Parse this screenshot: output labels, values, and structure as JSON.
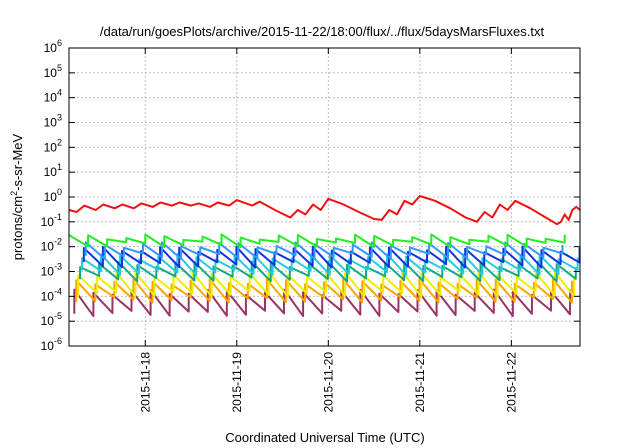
{
  "chart_data": {
    "type": "line",
    "title": "/data/run/goesPlots/archive/2015-11-22/18:00/flux/../flux/5daysMarsFluxes.txt",
    "xlabel": "Coordinated Universal Time (UTC)",
    "ylabel_base": "protons/cm",
    "ylabel_sup": "2",
    "ylabel_rest": "-s-sr-MeV",
    "y_scale": "log",
    "ylim": [
      1e-06,
      1000000
    ],
    "y_ticks": [
      {
        "base": "10",
        "exp": "-6",
        "value": 1e-06
      },
      {
        "base": "10",
        "exp": "-5",
        "value": 1e-05
      },
      {
        "base": "10",
        "exp": "-4",
        "value": 0.0001
      },
      {
        "base": "10",
        "exp": "-3",
        "value": 0.001
      },
      {
        "base": "10",
        "exp": "-2",
        "value": 0.01
      },
      {
        "base": "10",
        "exp": "-1",
        "value": 0.1
      },
      {
        "base": "10",
        "exp": "0",
        "value": 1
      },
      {
        "base": "10",
        "exp": "1",
        "value": 10
      },
      {
        "base": "10",
        "exp": "2",
        "value": 100
      },
      {
        "base": "10",
        "exp": "3",
        "value": 1000
      },
      {
        "base": "10",
        "exp": "4",
        "value": 10000
      },
      {
        "base": "10",
        "exp": "5",
        "value": 100000
      },
      {
        "base": "10",
        "exp": "6",
        "value": 1000000
      }
    ],
    "xlim": [
      "2015-11-17 04:00",
      "2015-11-22 18:00"
    ],
    "x_ticks": [
      {
        "label": "2015-11-18",
        "value": "2015-11-18 00:00"
      },
      {
        "label": "2015-11-19",
        "value": "2015-11-19 00:00"
      },
      {
        "label": "2015-11-20",
        "value": "2015-11-20 00:00"
      },
      {
        "label": "2015-11-21",
        "value": "2015-11-21 00:00"
      },
      {
        "label": "2015-11-22",
        "value": "2015-11-22 00:00"
      }
    ],
    "grid": true,
    "series": [
      {
        "color": "#ee1111",
        "points": [
          [
            "2015-11-17 04:00",
            0.3
          ],
          [
            "2015-11-17 06:00",
            0.25
          ],
          [
            "2015-11-17 08:00",
            0.45
          ],
          [
            "2015-11-17 11:00",
            0.3
          ],
          [
            "2015-11-17 13:00",
            0.5
          ],
          [
            "2015-11-17 16:00",
            0.35
          ],
          [
            "2015-11-17 18:00",
            0.5
          ],
          [
            "2015-11-17 21:00",
            0.35
          ],
          [
            "2015-11-17 23:00",
            0.55
          ],
          [
            "2015-11-18 02:00",
            0.4
          ],
          [
            "2015-11-18 04:00",
            0.6
          ],
          [
            "2015-11-18 07:00",
            0.45
          ],
          [
            "2015-11-18 09:00",
            0.6
          ],
          [
            "2015-11-18 12:00",
            0.45
          ],
          [
            "2015-11-18 14:00",
            0.55
          ],
          [
            "2015-11-18 17:00",
            0.4
          ],
          [
            "2015-11-18 19:00",
            0.6
          ],
          [
            "2015-11-18 22:00",
            0.45
          ],
          [
            "2015-11-19 00:00",
            0.75
          ],
          [
            "2015-11-19 04:00",
            0.45
          ],
          [
            "2015-11-19 06:00",
            0.65
          ],
          [
            "2015-11-19 10:00",
            0.3
          ],
          [
            "2015-11-19 14:00",
            0.15
          ],
          [
            "2015-11-19 16:00",
            0.3
          ],
          [
            "2015-11-19 18:00",
            0.2
          ],
          [
            "2015-11-19 20:00",
            0.5
          ],
          [
            "2015-11-19 22:00",
            0.3
          ],
          [
            "2015-11-20 00:00",
            0.85
          ],
          [
            "2015-11-20 04:00",
            0.5
          ],
          [
            "2015-11-20 08:00",
            0.25
          ],
          [
            "2015-11-20 12:00",
            0.13
          ],
          [
            "2015-11-20 14:00",
            0.12
          ],
          [
            "2015-11-20 16:00",
            0.3
          ],
          [
            "2015-11-20 18:00",
            0.2
          ],
          [
            "2015-11-20 20:00",
            0.7
          ],
          [
            "2015-11-20 22:00",
            0.5
          ],
          [
            "2015-11-21 00:00",
            1.1
          ],
          [
            "2015-11-21 04:00",
            0.7
          ],
          [
            "2015-11-21 08:00",
            0.35
          ],
          [
            "2015-11-21 12:00",
            0.15
          ],
          [
            "2015-11-21 15:00",
            0.1
          ],
          [
            "2015-11-21 17:00",
            0.25
          ],
          [
            "2015-11-21 19:00",
            0.15
          ],
          [
            "2015-11-21 21:00",
            0.5
          ],
          [
            "2015-11-21 23:00",
            0.3
          ],
          [
            "2015-11-22 01:00",
            0.7
          ],
          [
            "2015-11-22 05:00",
            0.35
          ],
          [
            "2015-11-22 09:00",
            0.15
          ],
          [
            "2015-11-22 12:00",
            0.08
          ],
          [
            "2015-11-22 13:00",
            0.1
          ],
          [
            "2015-11-22 14:00",
            0.2
          ],
          [
            "2015-11-22 15:00",
            0.12
          ],
          [
            "2015-11-22 16:00",
            0.3
          ],
          [
            "2015-11-22 17:00",
            0.4
          ],
          [
            "2015-11-22 18:00",
            0.3
          ]
        ]
      },
      {
        "color": "#22ee22",
        "sawtooth": {
          "low": 0.012,
          "high": 0.025,
          "period_hours": 5,
          "phase_hours": 0
        }
      },
      {
        "color": "#3399ff",
        "sawtooth": {
          "low": 0.004,
          "high": 0.012,
          "period_hours": 5,
          "phase_hours": 0.6
        }
      },
      {
        "color": "#1133dd",
        "sawtooth": {
          "low": 0.0018,
          "high": 0.008,
          "period_hours": 5,
          "phase_hours": 1.1
        }
      },
      {
        "color": "#22ccdd",
        "sawtooth": {
          "low": 0.0009,
          "high": 0.004,
          "period_hours": 5,
          "phase_hours": 1.6
        }
      },
      {
        "color": "#11aa88",
        "sawtooth": {
          "low": 0.0005,
          "high": 0.002,
          "period_hours": 5,
          "phase_hours": 2.1
        }
      },
      {
        "color": "#eeee00",
        "sawtooth": {
          "low": 0.00012,
          "high": 0.0008,
          "period_hours": 5,
          "phase_hours": 2.6
        }
      },
      {
        "color": "#ffa500",
        "sawtooth": {
          "low": 7e-05,
          "high": 0.0004,
          "period_hours": 5,
          "phase_hours": 3.1
        }
      },
      {
        "color": "#993366",
        "sawtooth": {
          "low": 2e-05,
          "high": 0.00015,
          "period_hours": 5,
          "phase_hours": 3.6
        }
      }
    ]
  }
}
